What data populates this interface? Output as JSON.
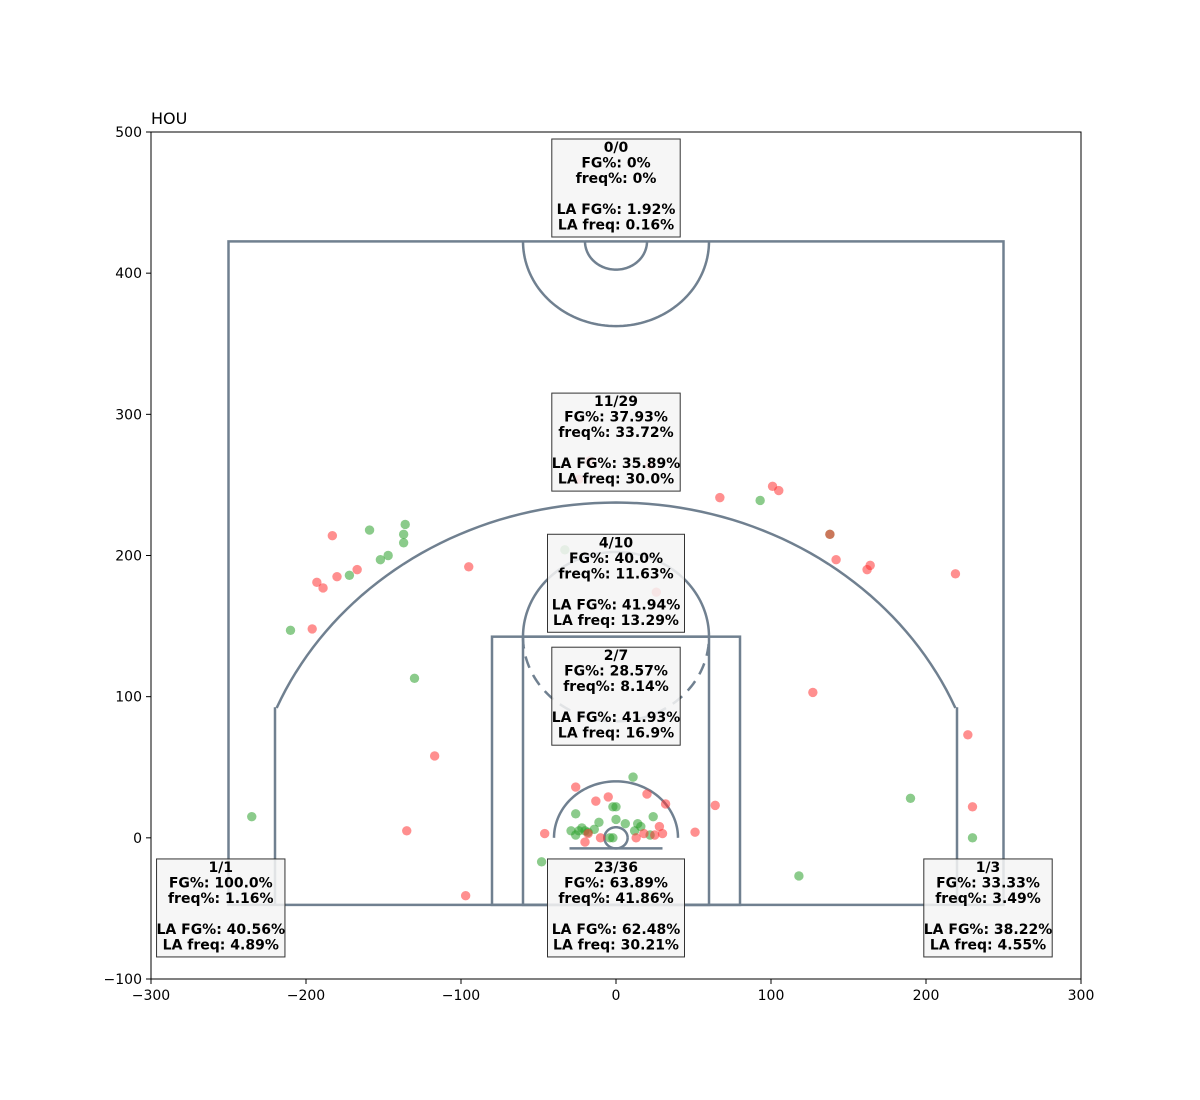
{
  "chart_data": {
    "type": "scatter",
    "title": "HOU",
    "xlabel": "",
    "ylabel": "",
    "xlim": [
      -300,
      300
    ],
    "ylim": [
      -100,
      500
    ],
    "x_ticks": [
      -300,
      -200,
      -100,
      0,
      100,
      200,
      300
    ],
    "y_ticks": [
      -100,
      0,
      100,
      200,
      300,
      400,
      500
    ],
    "grid": false,
    "colors": {
      "made": "#2ca02c",
      "missed": "#ff3333",
      "court_lines": "#708090",
      "zone_box_bg": "#f5f5f5"
    },
    "zones": [
      {
        "x": 0,
        "y": 500,
        "lines": [
          "0/0",
          "FG%: 0%",
          "freq%: 0%",
          "",
          "LA FG%: 1.92%",
          "LA freq: 0.16%"
        ]
      },
      {
        "x": 0,
        "y": 320,
        "lines": [
          "11/29",
          "FG%: 37.93%",
          "freq%: 33.72%",
          "",
          "LA FG%: 35.89%",
          "LA freq: 30.0%"
        ]
      },
      {
        "x": 0,
        "y": 220,
        "lines": [
          "4/10",
          "FG%: 40.0%",
          "freq%: 11.63%",
          "",
          "LA FG%: 41.94%",
          "LA freq: 13.29%"
        ]
      },
      {
        "x": 0,
        "y": 140,
        "lines": [
          "2/7",
          "FG%: 28.57%",
          "freq%: 8.14%",
          "",
          "LA FG%: 41.93%",
          "LA freq: 16.9%"
        ]
      },
      {
        "x": 0,
        "y": -10,
        "lines": [
          "23/36",
          "FG%: 63.89%",
          "freq%: 41.86%",
          "",
          "LA FG%: 62.48%",
          "LA freq: 30.21%"
        ]
      },
      {
        "x": -255,
        "y": -10,
        "lines": [
          "1/1",
          "FG%: 100.0%",
          "freq%: 1.16%",
          "",
          "LA FG%: 40.56%",
          "LA freq: 4.89%"
        ]
      },
      {
        "x": 240,
        "y": -10,
        "lines": [
          "1/3",
          "FG%: 33.33%",
          "freq%: 3.49%",
          "",
          "LA FG%: 38.22%",
          "LA freq: 4.55%"
        ]
      }
    ],
    "series": [
      {
        "name": "made",
        "points": [
          [
            -235,
            15
          ],
          [
            -210,
            147
          ],
          [
            -172,
            186
          ],
          [
            -159,
            218
          ],
          [
            -152,
            197
          ],
          [
            -147,
            200
          ],
          [
            -137,
            215
          ],
          [
            -136,
            222
          ],
          [
            -137,
            209
          ],
          [
            -130,
            113
          ],
          [
            -33,
            204
          ],
          [
            93,
            239
          ],
          [
            138,
            215
          ],
          [
            190,
            28
          ],
          [
            230,
            0
          ],
          [
            118,
            -27
          ],
          [
            -48,
            -17
          ],
          [
            -26,
            17
          ],
          [
            -29,
            5
          ],
          [
            -24,
            5
          ],
          [
            -22,
            7
          ],
          [
            -20,
            5
          ],
          [
            -18,
            4
          ],
          [
            -14,
            6
          ],
          [
            -11,
            11
          ],
          [
            -2,
            22
          ],
          [
            0,
            22
          ],
          [
            0,
            13
          ],
          [
            -4,
            0
          ],
          [
            -2,
            0
          ],
          [
            6,
            10
          ],
          [
            12,
            5
          ],
          [
            14,
            10
          ],
          [
            16,
            8
          ],
          [
            24,
            15
          ],
          [
            11,
            43
          ],
          [
            22,
            2
          ],
          [
            -26,
            2
          ]
        ]
      },
      {
        "name": "missed",
        "points": [
          [
            -196,
            148
          ],
          [
            -193,
            181
          ],
          [
            -189,
            177
          ],
          [
            -183,
            214
          ],
          [
            -180,
            185
          ],
          [
            -167,
            190
          ],
          [
            -135,
            5
          ],
          [
            -117,
            58
          ],
          [
            -97,
            -41
          ],
          [
            -95,
            192
          ],
          [
            -17,
            267
          ],
          [
            -24,
            254
          ],
          [
            22,
            264
          ],
          [
            26,
            174
          ],
          [
            67,
            241
          ],
          [
            101,
            249
          ],
          [
            105,
            246
          ],
          [
            127,
            103
          ],
          [
            138,
            215
          ],
          [
            142,
            197
          ],
          [
            162,
            190
          ],
          [
            164,
            193
          ],
          [
            219,
            187
          ],
          [
            227,
            73
          ],
          [
            230,
            22
          ],
          [
            64,
            23
          ],
          [
            51,
            4
          ],
          [
            32,
            24
          ],
          [
            28,
            8
          ],
          [
            30,
            3
          ],
          [
            25,
            2
          ],
          [
            18,
            3
          ],
          [
            13,
            0
          ],
          [
            20,
            31
          ],
          [
            -5,
            29
          ],
          [
            -13,
            26
          ],
          [
            -26,
            36
          ],
          [
            -10,
            0
          ],
          [
            -20,
            -3
          ],
          [
            -18,
            3
          ],
          [
            -46,
            3
          ]
        ]
      }
    ]
  }
}
